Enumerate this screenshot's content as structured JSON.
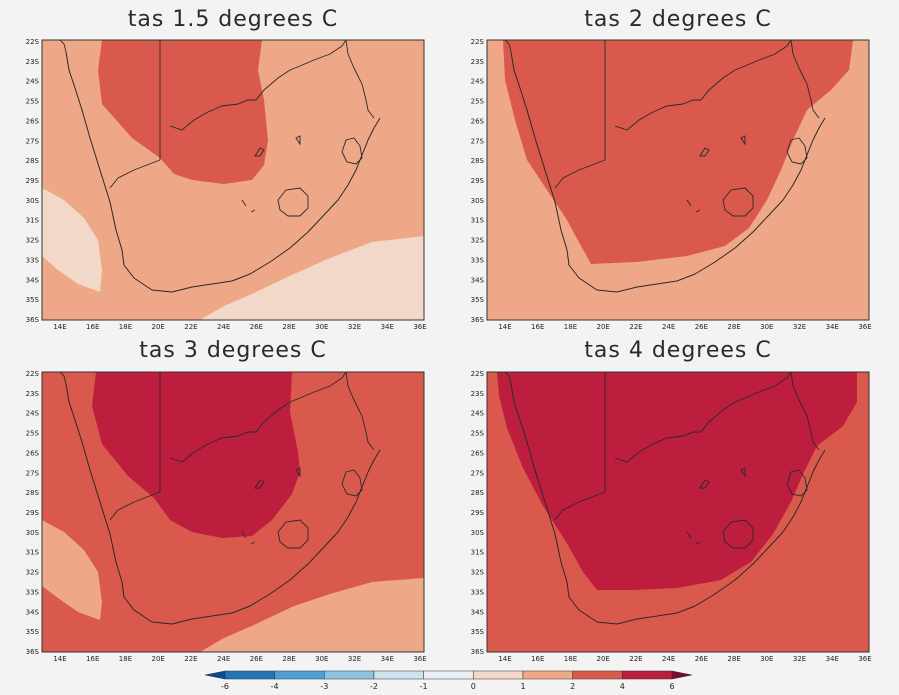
{
  "colors": {
    "c_0_1": "#f1d8c8",
    "c_1_2": "#eea887",
    "c_2_4": "#d95a4c",
    "c_4_6": "#bd1e3e",
    "c_m1_0": "#e8eef2",
    "c_m2_m1": "#cfe3ef",
    "c_m3_m2": "#8ec3e2",
    "c_m4_m3": "#4f9fd3",
    "c_m6_m4": "#2274b7",
    "c_lt_m6": "#0b4a8f",
    "c_gt_6": "#7a0d2d"
  },
  "panels": [
    {
      "id": "p15",
      "title": "tas 1.5 degrees C",
      "background_range": "1-2",
      "low_patches": "0-1",
      "interior_range": "2-4"
    },
    {
      "id": "p2",
      "title": "tas 2 degrees C",
      "background_range": "1-2",
      "interior_range": "2-4"
    },
    {
      "id": "p3",
      "title": "tas 3 degrees C",
      "background_range": "2-4",
      "low_patches": "1-2",
      "interior_range": "4-6"
    },
    {
      "id": "p4",
      "title": "tas 4 degrees C",
      "background_range": "2-4",
      "interior_range": "4-6"
    }
  ],
  "axes": {
    "x_ticks": [
      "14E",
      "16E",
      "18E",
      "20E",
      "22E",
      "24E",
      "26E",
      "28E",
      "30E",
      "32E",
      "34E",
      "36E"
    ],
    "y_ticks": [
      "22S",
      "23S",
      "24S",
      "25S",
      "26S",
      "27S",
      "28S",
      "29S",
      "30S",
      "31S",
      "32S",
      "33S",
      "34S",
      "35S",
      "36S"
    ]
  },
  "colorbar": {
    "labels": [
      "-6",
      "-4",
      "-3",
      "-2",
      "-1",
      "0",
      "1",
      "2",
      "4",
      "6"
    ],
    "bins": [
      "<-6",
      "-6 to -4",
      "-4 to -3",
      "-3 to -2",
      "-2 to -1",
      "-1 to 0",
      "0 to 1",
      "1 to 2",
      "2 to 4",
      "4 to 6",
      ">6"
    ]
  }
}
